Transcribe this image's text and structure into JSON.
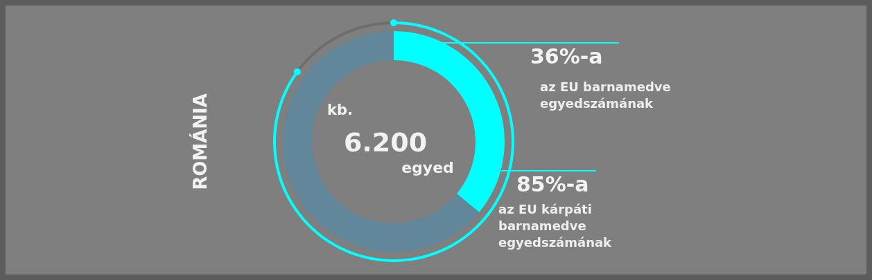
{
  "chart_data": [
    {
      "type": "donut",
      "title": "ROMÁNIA",
      "categories": [
        null,
        null
      ],
      "colors": [
        "#00ffff",
        "#63879a"
      ],
      "values": [
        36,
        64
      ],
      "value_labels": [
        "36%-a",
        null
      ],
      "annotations": [
        "kb.",
        "6.200",
        "egyed",
        "az EU barnamedve egyedszámának"
      ]
    },
    {
      "type": "donut",
      "categories": [
        null,
        null
      ],
      "colors": [
        "#00ffff",
        "#6e6e6e"
      ],
      "values": [
        85,
        15
      ],
      "value_labels": [
        "85%-a",
        null
      ],
      "annotations": [
        "az EU kárpáti barnamedve egyedszámának"
      ]
    }
  ]
}
